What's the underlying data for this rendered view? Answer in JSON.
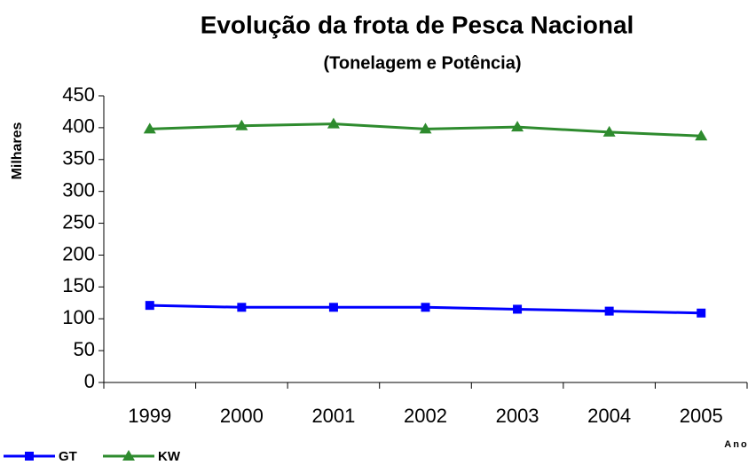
{
  "chart_data": {
    "type": "line",
    "title": "Evolução da frota de Pesca Nacional",
    "subtitle": "(Tonelagem e Potência)",
    "y_label": "Milhares",
    "x_label": "Ano",
    "categories": [
      "1999",
      "2000",
      "2001",
      "2002",
      "2003",
      "2004",
      "2005"
    ],
    "series": [
      {
        "name": "GT",
        "color": "#0000ff",
        "marker": "square",
        "values": [
          121,
          118,
          118,
          118,
          115,
          112,
          109
        ]
      },
      {
        "name": "KW",
        "color": "#2e8b2e",
        "marker": "triangle",
        "values": [
          398,
          403,
          406,
          398,
          401,
          393,
          387
        ]
      }
    ],
    "ylim": [
      0,
      450
    ],
    "yticks": [
      0,
      50,
      100,
      150,
      200,
      250,
      300,
      350,
      400,
      450
    ],
    "grid": false,
    "legend": "bottom-left"
  }
}
